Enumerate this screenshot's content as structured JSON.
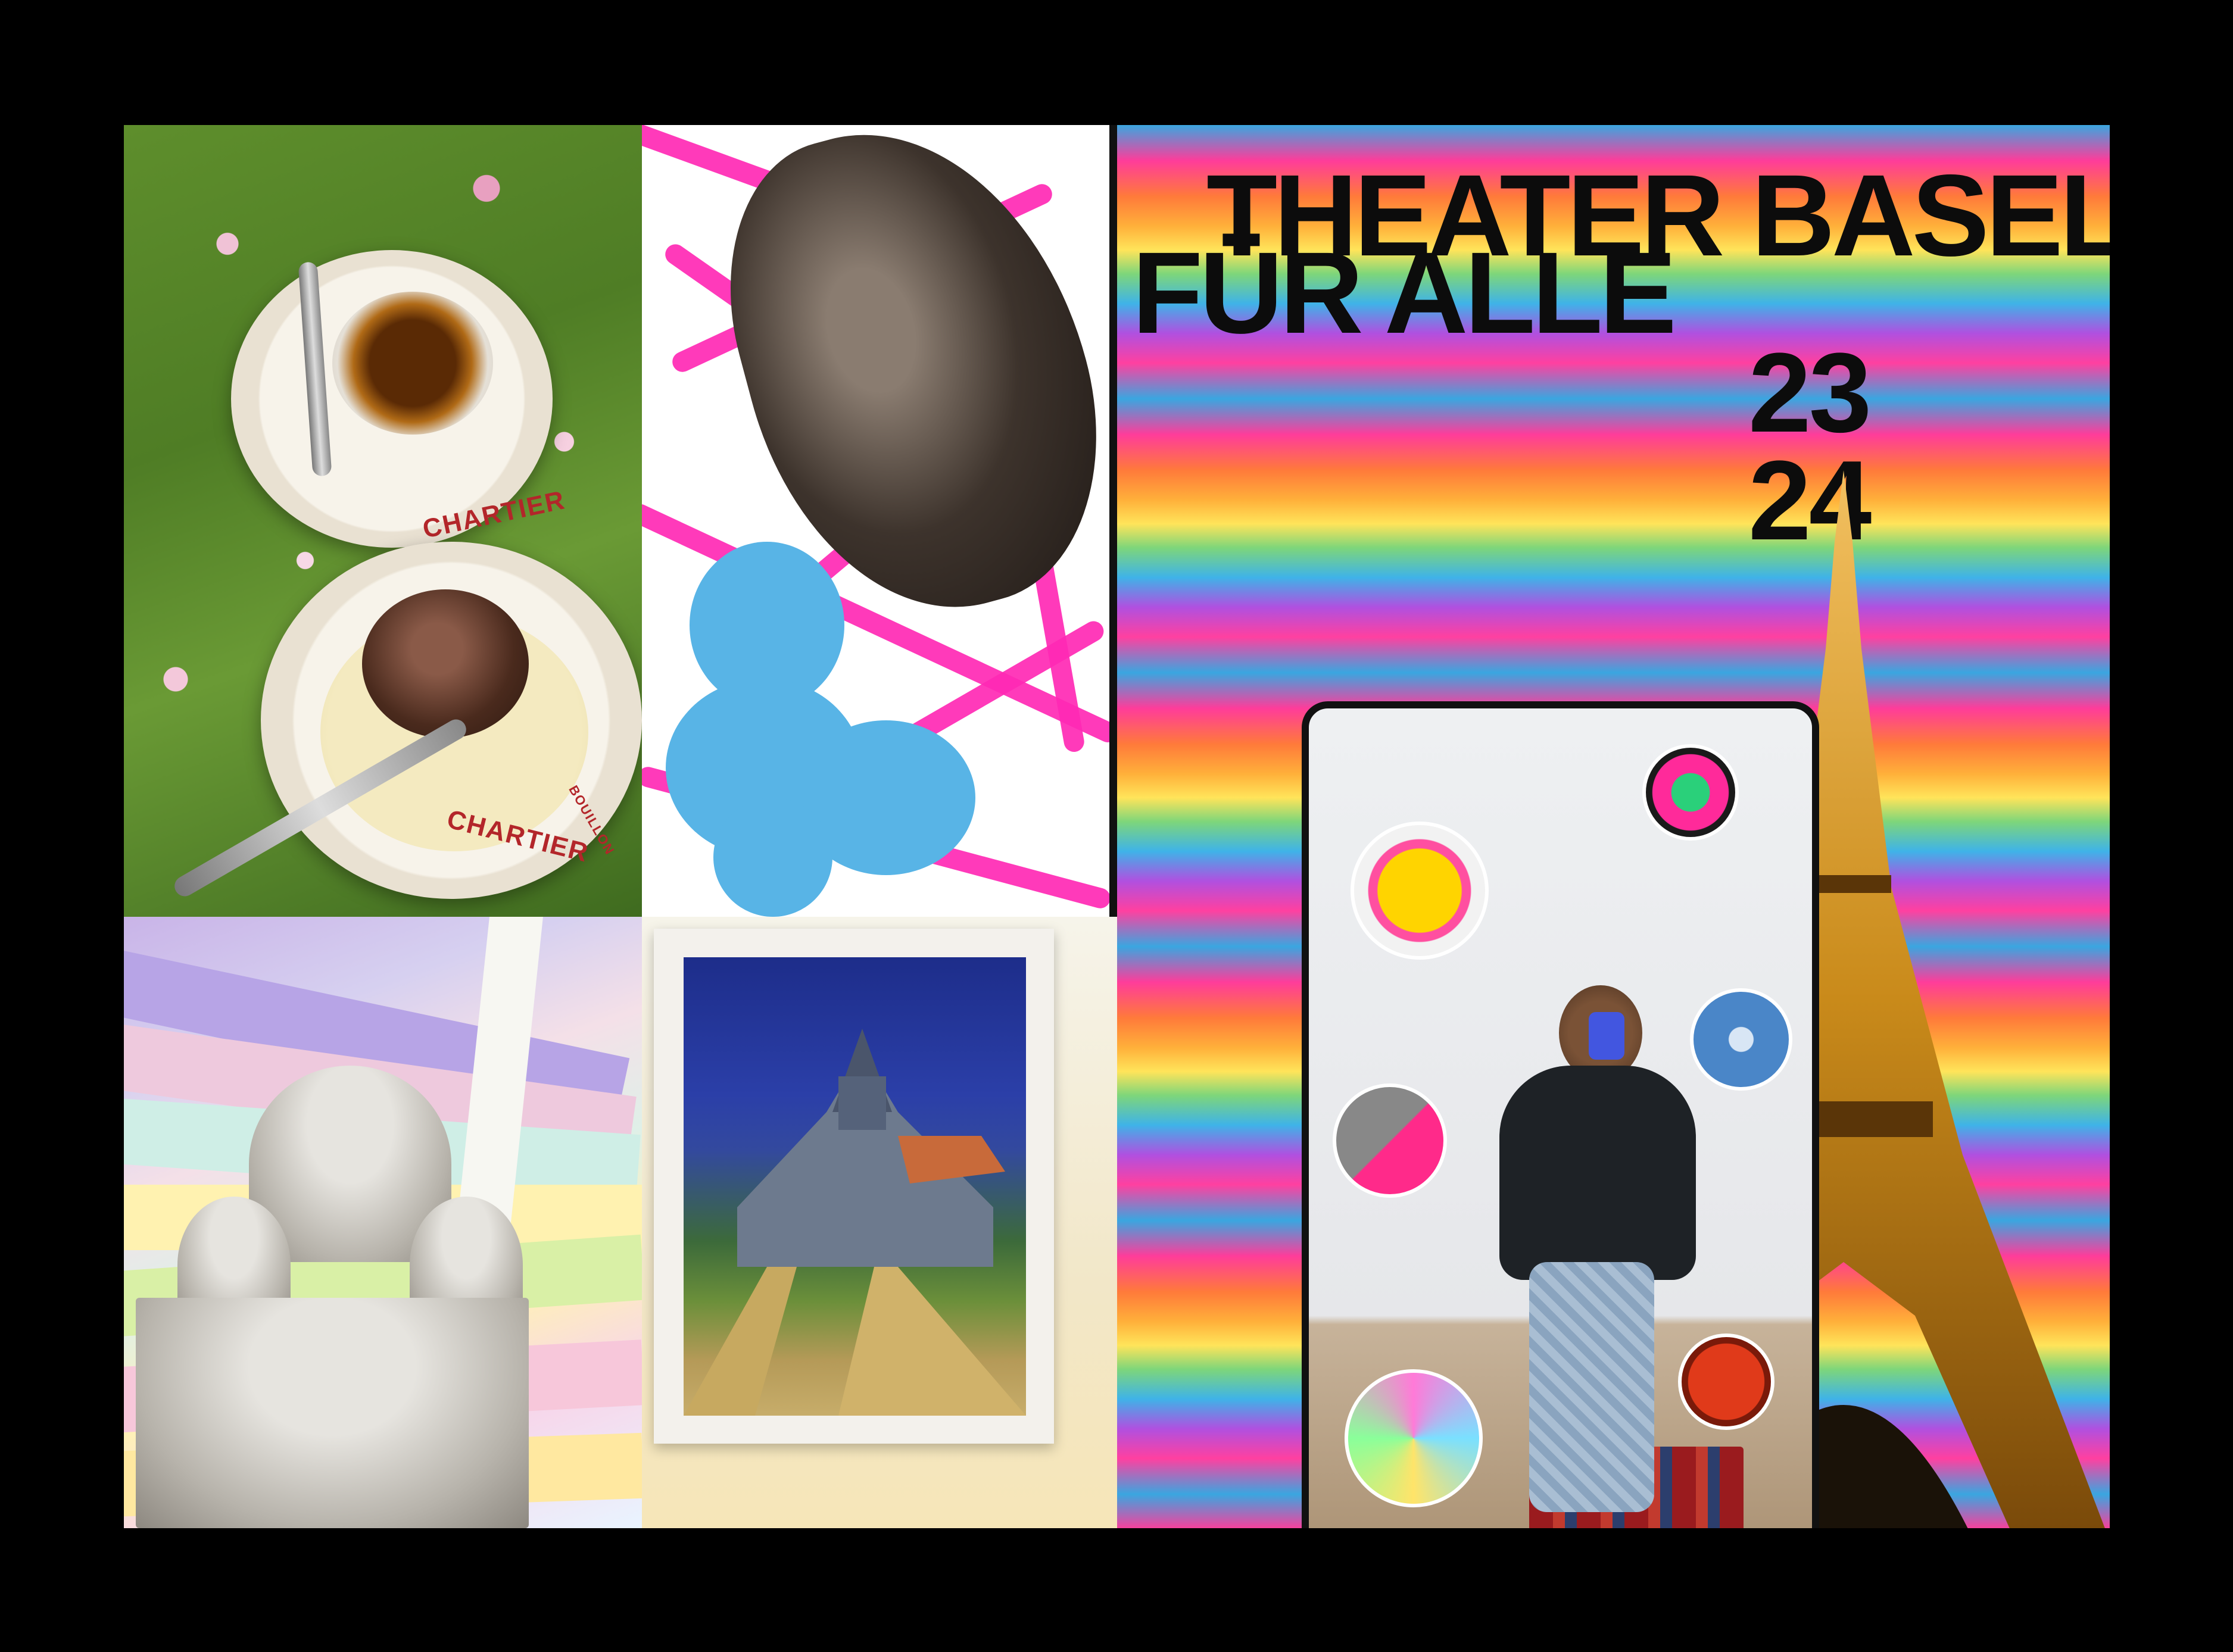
{
  "dessert_panel": {
    "plate_top_label": "CHARTIER",
    "plate_bottom_label": "CHARTIER",
    "plate_bottom_sub": "BOUILLON"
  },
  "poster": {
    "line1_left": "THEATER",
    "line1_right": "BASEL",
    "line2": "FÜR ALLE",
    "year_top": "23",
    "year_bottom": "24"
  },
  "colors": {
    "background": "#000000",
    "hot_pink": "#ff29b4",
    "light_blue": "#58b4e6",
    "eiffel_gold": "#c98a1a"
  }
}
